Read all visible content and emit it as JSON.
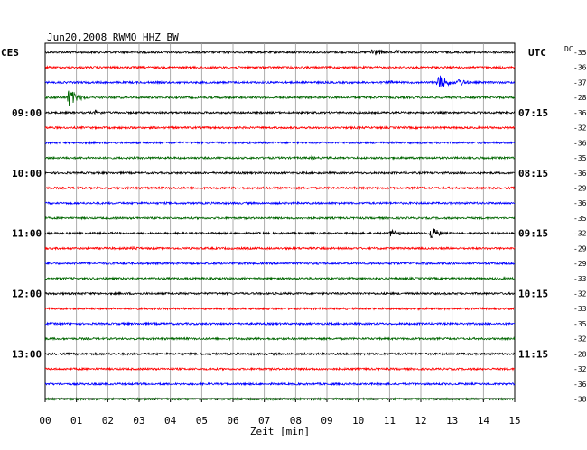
{
  "chart_data": {
    "type": "line",
    "title": "Jun20,2008   RWMO HHZ BW",
    "left_label": "CES",
    "right_label": "UTC",
    "dc_label": "DC",
    "xlabel": "Zeit [min]",
    "x_ticks": [
      "00",
      "01",
      "02",
      "03",
      "04",
      "05",
      "06",
      "07",
      "08",
      "09",
      "10",
      "11",
      "12",
      "13",
      "14",
      "15"
    ],
    "xlim": [
      0,
      15
    ],
    "trace_colors": [
      "#000000",
      "#ff0000",
      "#0000ff",
      "#006600"
    ],
    "left_time_labels": [
      {
        "trace": 4,
        "text": "09:00"
      },
      {
        "trace": 8,
        "text": "10:00"
      },
      {
        "trace": 12,
        "text": "11:00"
      },
      {
        "trace": 16,
        "text": "12:00"
      },
      {
        "trace": 20,
        "text": "13:00"
      }
    ],
    "right_time_labels": [
      {
        "trace": 4,
        "text": "07:15"
      },
      {
        "trace": 8,
        "text": "08:15"
      },
      {
        "trace": 12,
        "text": "09:15"
      },
      {
        "trace": 16,
        "text": "10:15"
      },
      {
        "trace": 20,
        "text": "11:15"
      }
    ],
    "dc_offsets": [
      -35,
      -36,
      -37,
      -28,
      -36,
      -32,
      -36,
      -35,
      -36,
      -29,
      -36,
      -35,
      -32,
      -29,
      -29,
      -33,
      -32,
      -33,
      -35,
      -32,
      -28,
      -32,
      -36,
      -38
    ],
    "events": [
      {
        "trace": 0,
        "minute": 10.45,
        "amplitude": 6
      },
      {
        "trace": 0,
        "minute": 11.2,
        "amplitude": 3
      },
      {
        "trace": 2,
        "minute": 12.55,
        "amplitude": 10
      },
      {
        "trace": 2,
        "minute": 13.2,
        "amplitude": 5
      },
      {
        "trace": 2,
        "minute": 11.0,
        "amplitude": 2.5
      },
      {
        "trace": 3,
        "minute": 0.75,
        "amplitude": 11
      },
      {
        "trace": 4,
        "minute": 1.6,
        "amplitude": 3
      },
      {
        "trace": 12,
        "minute": 12.3,
        "amplitude": 8
      },
      {
        "trace": 12,
        "minute": 11.05,
        "amplitude": 5
      },
      {
        "trace": 13,
        "minute": 2.8,
        "amplitude": 2.5
      },
      {
        "trace": 7,
        "minute": 8.5,
        "amplitude": 2
      }
    ]
  }
}
